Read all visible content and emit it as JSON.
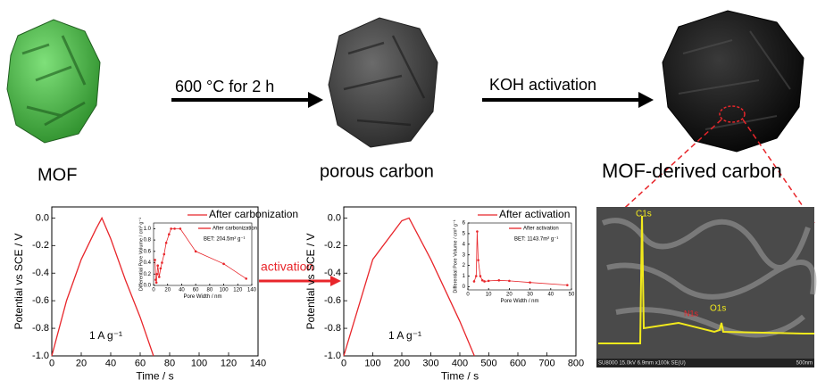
{
  "labels": {
    "mof": "MOF",
    "step1": "600 °C for 2 h",
    "porous": "porous carbon",
    "step2": "KOH activation",
    "derived": "MOF-derived carbon",
    "activation": "activation",
    "eds_c": "C1s",
    "eds_n": "N1s",
    "eds_o": "O1s",
    "sem_info": "SU8000 15.0kV 6.9mm x100k SE(U)",
    "sem_scale": "500nm"
  },
  "chart_data": [
    {
      "type": "line",
      "xlabel": "Time / s",
      "ylabel": "Potential vs SCE / V",
      "annotation": "1 A g⁻¹",
      "xlim": [
        0,
        140
      ],
      "xticks": [
        0,
        20,
        40,
        60,
        80,
        100,
        120,
        140
      ],
      "ylim": [
        -1.0,
        0.08
      ],
      "yticks": [
        {
          "value": 0,
          "label": "0.0"
        },
        -0.2,
        -0.4,
        -0.6,
        -0.8,
        {
          "value": -1,
          "label": "-1.0"
        }
      ],
      "series": [
        {
          "name": "After carbonization",
          "color": "#e8262b",
          "x": [
            0,
            10,
            20,
            30,
            34,
            40,
            50,
            60,
            69
          ],
          "values": [
            -1.0,
            -0.6,
            -0.3,
            -0.08,
            0.0,
            -0.15,
            -0.45,
            -0.72,
            -1.0
          ]
        }
      ]
    },
    {
      "type": "line",
      "xlabel": "Pore Width / nm",
      "ylabel": "Differential Pore Volume / cm³ g⁻¹",
      "annotation": "BET: 204.5m² g⁻¹",
      "xlim": [
        0,
        140
      ],
      "xticks": [
        0,
        20,
        40,
        60,
        80,
        100,
        120,
        140
      ],
      "ylim": [
        0,
        1.1
      ],
      "yticks": [
        {
          "value": 0,
          "label": "0.0"
        },
        0.2,
        0.4,
        0.6,
        0.8,
        {
          "value": 1,
          "label": "1.0"
        }
      ],
      "series": [
        {
          "name": "After carbonization",
          "color": "#e8262b",
          "x": [
            2,
            3,
            4,
            5,
            6,
            8,
            10,
            12,
            15,
            18,
            22,
            25,
            30,
            38,
            60,
            100,
            132
          ],
          "values": [
            0.45,
            0.1,
            0.05,
            0.2,
            0.35,
            0.15,
            0.3,
            0.4,
            0.55,
            0.75,
            0.9,
            1.0,
            1.0,
            1.0,
            0.6,
            0.38,
            0.12
          ]
        }
      ]
    },
    {
      "type": "line",
      "xlabel": "Time / s",
      "ylabel": "Potential vs SCE / V",
      "annotation": "1 A g⁻¹",
      "xlim": [
        0,
        800
      ],
      "xticks": [
        0,
        100,
        200,
        300,
        400,
        500,
        600,
        700,
        800
      ],
      "ylim": [
        -1.0,
        0.08
      ],
      "yticks": [
        {
          "value": 0,
          "label": "0.0"
        },
        -0.2,
        -0.4,
        -0.6,
        -0.8,
        {
          "value": -1,
          "label": "-1.0"
        }
      ],
      "series": [
        {
          "name": "After activation",
          "color": "#e8262b",
          "x": [
            0,
            100,
            200,
            225,
            300,
            400,
            450
          ],
          "values": [
            -1.0,
            -0.3,
            -0.02,
            0.0,
            -0.3,
            -0.75,
            -1.0
          ]
        }
      ]
    },
    {
      "type": "line",
      "xlabel": "Pore Width / nm",
      "ylabel": "Differential Pore Volume / cm³ g⁻¹",
      "annotation": "BET: 1143.7m² g⁻¹",
      "xlim": [
        0,
        50
      ],
      "xticks": [
        0,
        10,
        20,
        30,
        40,
        50
      ],
      "ylim": [
        -0.3,
        6
      ],
      "yticks": [
        0,
        1,
        2,
        3,
        4,
        5,
        6
      ],
      "series": [
        {
          "name": "After activation",
          "color": "#e8262b",
          "x": [
            3,
            4,
            4.5,
            5,
            6,
            7,
            8,
            10,
            15,
            20,
            30,
            48
          ],
          "values": [
            0.5,
            1.0,
            5.2,
            2.5,
            1.0,
            0.6,
            0.5,
            0.55,
            0.6,
            0.55,
            0.4,
            0.15
          ]
        }
      ]
    }
  ]
}
